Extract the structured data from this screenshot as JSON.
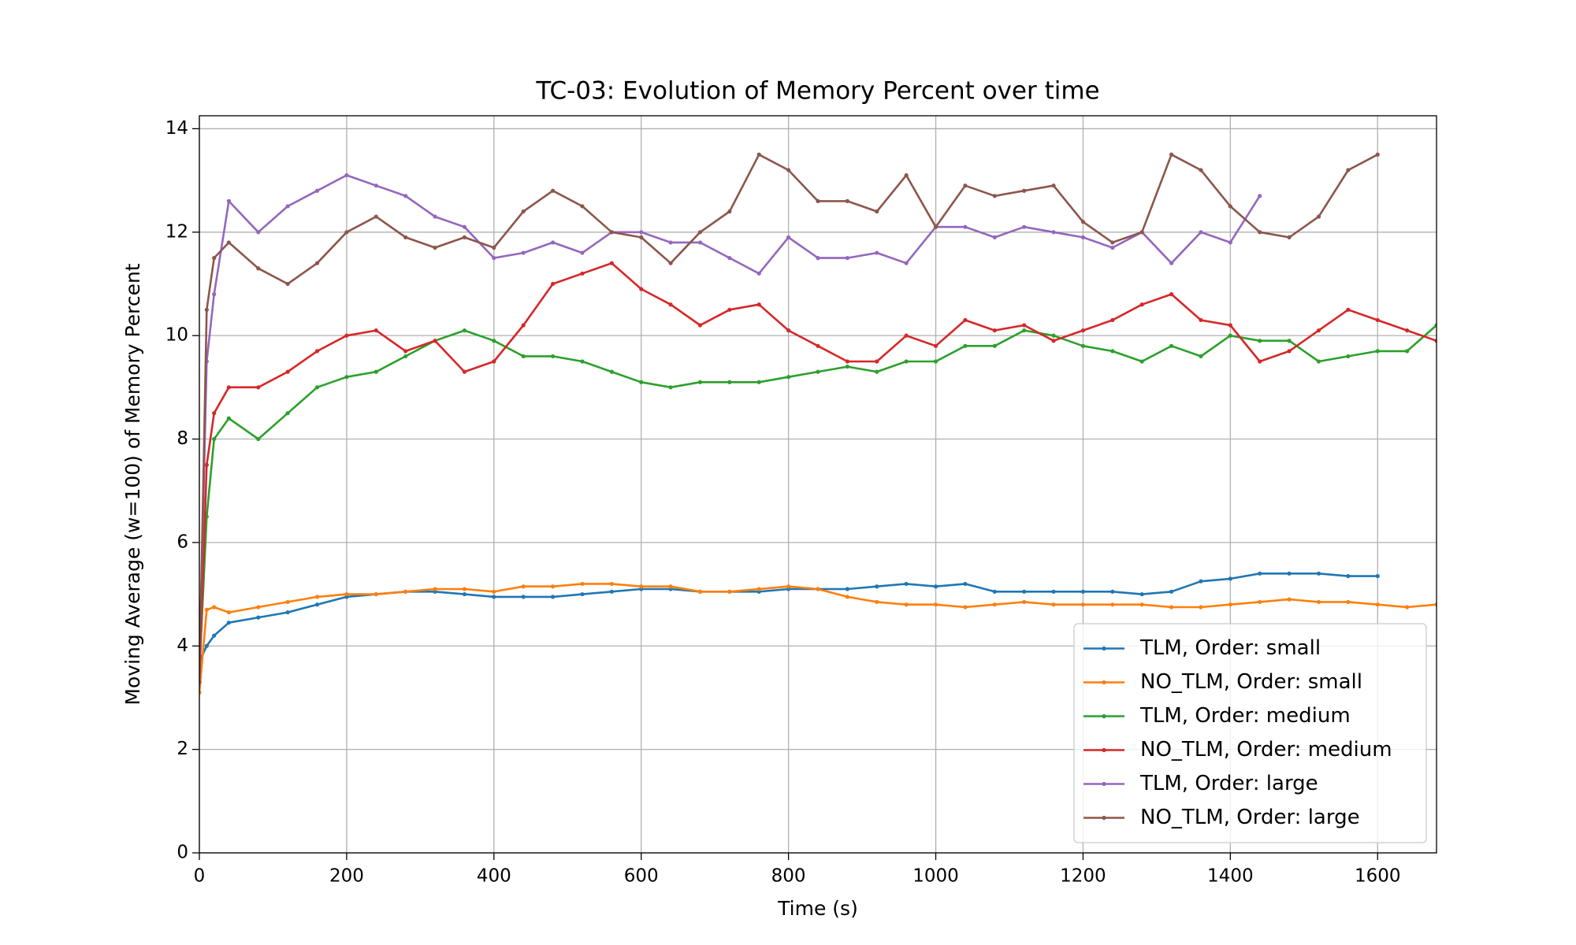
{
  "chart_data": {
    "type": "line",
    "title": "TC-03: Evolution of Memory Percent over time",
    "x_label": "Time (s)",
    "y_label": "Moving Average (w=100) of Memory Percent",
    "x": [
      0,
      10,
      20,
      40,
      80,
      120,
      160,
      200,
      240,
      280,
      320,
      360,
      400,
      440,
      480,
      520,
      560,
      600,
      640,
      680,
      720,
      760,
      800,
      840,
      880,
      920,
      960,
      1000,
      1040,
      1080,
      1120,
      1160,
      1200,
      1240,
      1280,
      1320,
      1360,
      1400,
      1440,
      1480,
      1520,
      1560,
      1600,
      1640,
      1680
    ],
    "series": [
      {
        "name": "TLM, Order: small",
        "color": "#1f77b4",
        "values": [
          3.7,
          4.0,
          4.2,
          4.45,
          4.55,
          4.65,
          4.8,
          4.95,
          5.0,
          5.05,
          5.05,
          5.0,
          4.95,
          4.95,
          4.95,
          5.0,
          5.05,
          5.1,
          5.1,
          5.05,
          5.05,
          5.05,
          5.1,
          5.1,
          5.1,
          5.15,
          5.2,
          5.15,
          5.2,
          5.05,
          5.05,
          5.05,
          5.05,
          5.05,
          5.0,
          5.05,
          5.25,
          5.3,
          5.4,
          5.4,
          5.4,
          5.35,
          5.35,
          null,
          null
        ]
      },
      {
        "name": "NO_TLM, Order: small",
        "color": "#ff7f0e",
        "values": [
          3.1,
          4.7,
          4.75,
          4.65,
          4.75,
          4.85,
          4.95,
          5.0,
          5.0,
          5.05,
          5.1,
          5.1,
          5.05,
          5.15,
          5.15,
          5.2,
          5.2,
          5.15,
          5.15,
          5.05,
          5.05,
          5.1,
          5.15,
          5.1,
          4.95,
          4.85,
          4.8,
          4.8,
          4.75,
          4.8,
          4.85,
          4.8,
          4.8,
          4.8,
          4.8,
          4.75,
          4.75,
          4.8,
          4.85,
          4.9,
          4.85,
          4.85,
          4.8,
          4.75,
          4.8
        ]
      },
      {
        "name": "TLM, Order: medium",
        "color": "#2ca02c",
        "values": [
          3.5,
          6.5,
          8.0,
          8.4,
          8.0,
          8.5,
          9.0,
          9.2,
          9.3,
          9.6,
          9.9,
          10.1,
          9.9,
          9.6,
          9.6,
          9.5,
          9.3,
          9.1,
          9.0,
          9.1,
          9.1,
          9.1,
          9.2,
          9.3,
          9.4,
          9.3,
          9.5,
          9.5,
          9.8,
          9.8,
          10.1,
          10.0,
          9.8,
          9.7,
          9.5,
          9.8,
          9.6,
          10.0,
          9.9,
          9.9,
          9.5,
          9.6,
          9.7,
          9.7,
          10.2
        ]
      },
      {
        "name": "NO_TLM, Order: medium",
        "color": "#d62728",
        "values": [
          3.3,
          7.5,
          8.5,
          9.0,
          9.0,
          9.3,
          9.7,
          10.0,
          10.1,
          9.7,
          9.9,
          9.3,
          9.5,
          10.2,
          11.0,
          11.2,
          11.4,
          10.9,
          10.6,
          10.2,
          10.5,
          10.6,
          10.1,
          9.8,
          9.5,
          9.5,
          10.0,
          9.8,
          10.3,
          10.1,
          10.2,
          9.9,
          10.1,
          10.3,
          10.6,
          10.8,
          10.3,
          10.2,
          9.5,
          9.7,
          10.1,
          10.5,
          10.3,
          10.1,
          9.9
        ]
      },
      {
        "name": "TLM, Order: large",
        "color": "#9467bd",
        "values": [
          3.5,
          9.5,
          10.8,
          12.6,
          12.0,
          12.5,
          12.8,
          13.1,
          12.9,
          12.7,
          12.3,
          12.1,
          11.5,
          11.6,
          11.8,
          11.6,
          12.0,
          12.0,
          11.8,
          11.8,
          11.5,
          11.2,
          11.9,
          11.5,
          11.5,
          11.6,
          11.4,
          12.1,
          12.1,
          11.9,
          12.1,
          12.0,
          11.9,
          11.7,
          12.0,
          11.4,
          12.0,
          11.8,
          12.7,
          null,
          null,
          null,
          null,
          null,
          null
        ]
      },
      {
        "name": "NO_TLM, Order: large",
        "color": "#8c564b",
        "values": [
          3.3,
          10.5,
          11.5,
          11.8,
          11.3,
          11.0,
          11.4,
          12.0,
          12.3,
          11.9,
          11.7,
          11.9,
          11.7,
          12.4,
          12.8,
          12.5,
          12.0,
          11.9,
          11.4,
          12.0,
          12.4,
          13.5,
          13.2,
          12.6,
          12.6,
          12.4,
          13.1,
          12.1,
          12.9,
          12.7,
          12.8,
          12.9,
          12.2,
          11.8,
          12.0,
          13.5,
          13.2,
          12.5,
          12.0,
          11.9,
          12.3,
          13.2,
          13.5,
          null,
          null
        ]
      }
    ],
    "xlim": [
      0,
      1680
    ],
    "xticks": [
      0,
      200,
      400,
      600,
      800,
      1000,
      1200,
      1400,
      1600
    ],
    "ylim": [
      0,
      14.25
    ],
    "yticks": [
      0,
      2,
      4,
      6,
      8,
      10,
      12,
      14
    ],
    "grid": true,
    "legend": "lower right"
  }
}
